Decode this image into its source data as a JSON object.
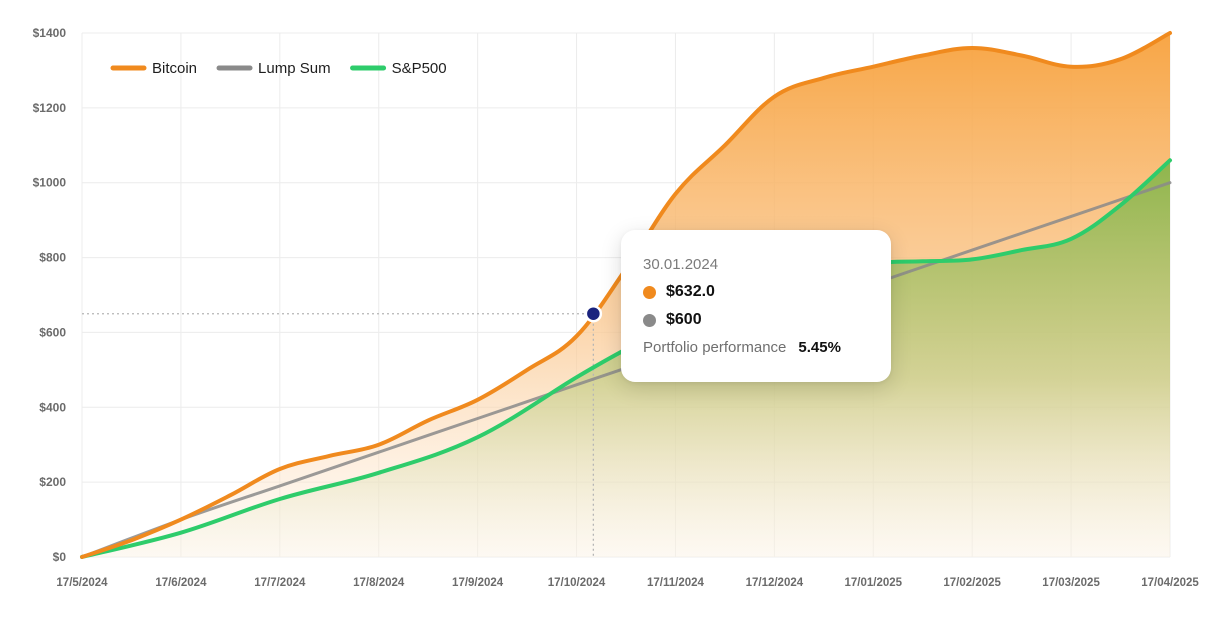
{
  "chart_data": {
    "type": "area",
    "title": "",
    "xlabel": "",
    "ylabel": "",
    "ylim": [
      0,
      1400
    ],
    "y_ticks": [
      "$0",
      "$200",
      "$400",
      "$600",
      "$800",
      "$1000",
      "$1200",
      "$1400"
    ],
    "y_tick_values": [
      0,
      200,
      400,
      600,
      800,
      1000,
      1200,
      1400
    ],
    "x_ticks": [
      "17/5/2024",
      "17/6/2024",
      "17/7/2024",
      "17/8/2024",
      "17/9/2024",
      "17/10/2024",
      "17/11/2024",
      "17/12/2024",
      "17/01/2025",
      "17/02/2025",
      "17/03/2025",
      "17/04/2025"
    ],
    "grid": true,
    "legend_position": "top-left",
    "series": [
      {
        "name": "Bitcoin",
        "color": "#f08a1e",
        "x": [
          0,
          0.5,
          1,
          1.5,
          2,
          2.5,
          3,
          3.5,
          4,
          4.5,
          5,
          5.5,
          6,
          6.5,
          7,
          7.5,
          8,
          8.5,
          9,
          9.5,
          10,
          10.5,
          11
        ],
        "values": [
          0,
          45,
          100,
          165,
          235,
          270,
          300,
          365,
          420,
          500,
          590,
          770,
          970,
          1100,
          1230,
          1280,
          1310,
          1340,
          1360,
          1340,
          1310,
          1330,
          1400
        ]
      },
      {
        "name": "Lump Sum",
        "color": "#8a8a8a",
        "x": [
          0,
          1,
          2,
          3,
          4,
          5,
          6,
          7,
          8,
          9,
          10,
          11
        ],
        "values": [
          0,
          100,
          190,
          280,
          370,
          460,
          550,
          640,
          730,
          820,
          910,
          1000
        ]
      },
      {
        "name": "S&P500",
        "color": "#2ecc6b",
        "x": [
          0,
          1,
          2,
          3,
          4,
          5,
          5.5,
          6,
          6.5,
          7,
          7.5,
          8,
          8.5,
          9,
          9.5,
          10,
          10.5,
          11
        ],
        "values": [
          0,
          65,
          155,
          225,
          320,
          480,
          555,
          620,
          680,
          730,
          760,
          785,
          790,
          795,
          820,
          850,
          940,
          1060
        ]
      }
    ],
    "highlight": {
      "x": 5.17,
      "value": 650
    }
  },
  "tooltip": {
    "date": "30.01.2024",
    "rows": [
      {
        "label": "$632.0",
        "color": "#f08a1e"
      },
      {
        "label": "$600",
        "color": "#8a8a8a"
      }
    ],
    "performance_label": "Portfolio performance",
    "performance_value": "5.45%"
  },
  "colors": {
    "grid": "#ececec",
    "marker": "#1a237e",
    "guide": "#b5b5b5"
  }
}
